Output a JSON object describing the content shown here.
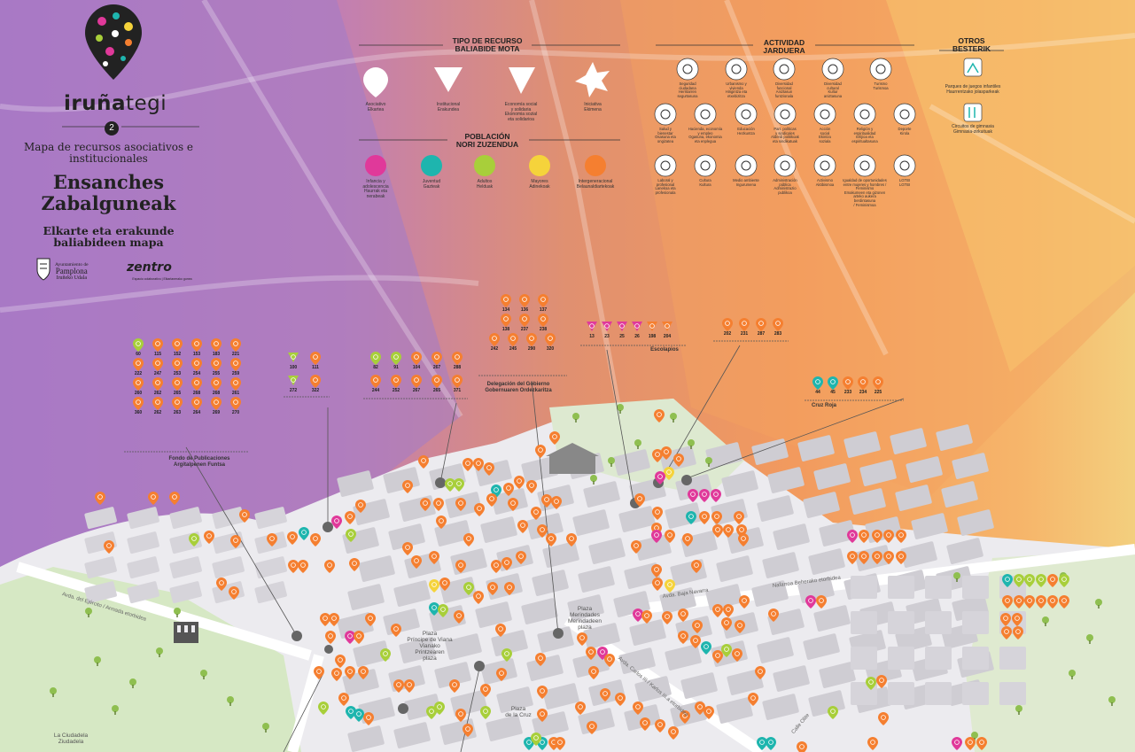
{
  "header": {
    "brand_bold": "iruña",
    "brand_light": "tegi",
    "edition": "2",
    "subtitle": "Mapa de recursos asociativos e institucionales",
    "district_es": "Ensanches",
    "district_eu": "Zabalguneak",
    "subtitle_eu": "Elkarte eta erakunde baliabideen mapa",
    "city_org_1": "Ayuntamiento de",
    "city_org_2": "Pamplona",
    "city_org_3": "Iruñeko Udala",
    "partner": "zentro",
    "partner_tag": "Espacio colaborativo | Elkarlanerako gunea"
  },
  "legend": {
    "tipo_title": "TIPO DE RECURSO\nBALIABIDE MOTA",
    "tipos": [
      {
        "label": "Asociativo\nElkartea",
        "shape": "drop"
      },
      {
        "label": "Institucional\nErakundea",
        "shape": "triangle"
      },
      {
        "label": "Economía social\ny solidaria\nEkonomia sozial\neta solidarioa",
        "shape": "diamond"
      },
      {
        "label": "Iniciativa\nEkimena",
        "shape": "star"
      }
    ],
    "poblacion_title": "POBLACIÓN\nNORI ZUZENDUA",
    "poblacion": [
      {
        "label": "Infancia y\nadolescencia\nHaurrak eta\nnerabeak",
        "color": "#e0399a"
      },
      {
        "label": "Juventud\nGazteak",
        "color": "#1eb5ae"
      },
      {
        "label": "Adultos\nHelduak",
        "color": "#a8cf3a"
      },
      {
        "label": "Mayores\nAdinekoak",
        "color": "#f5d33b"
      },
      {
        "label": "Intergeneracional\nBelaunaldiartekoak",
        "color": "#f57f30"
      }
    ],
    "actividad_title": "ACTIVIDAD\nJARDUERA",
    "actividades": [
      {
        "label": "Seguridad\nciudadana\nHerritarren\nsegurtasuna",
        "icon": "shield-check-icon"
      },
      {
        "label": "Urbanismo y\nvivienda\nHirigintza eta\netxebizitza",
        "icon": "house-icon"
      },
      {
        "label": "Diversidad\nfuncional\nAniztasun\nfuntzionala",
        "icon": "wheelchair-icon"
      },
      {
        "label": "Diversidad\ncultural\nKultur\naniztasuna",
        "icon": "globe-icon"
      },
      {
        "label": "Turismo\nTurismoa",
        "icon": "sun-icon"
      },
      {
        "label": "Salud y\nbienestar\nOsasuna eta\nongizatea",
        "icon": "heartbeat-icon"
      },
      {
        "label": "Hacienda, economía\ny empleo\nOgasuna, ekonomia\neta enplegua",
        "icon": "chart-icon"
      },
      {
        "label": "Educación\nHezkuntza",
        "icon": "book-icon"
      },
      {
        "label": "Part. políticas\ny sindicales\nAlderdi politikoak\neta sindikatuak",
        "icon": "megaphone-icon"
      },
      {
        "label": "Acción\nsocial\nEkintza\nsoziala",
        "icon": "handshake-icon"
      },
      {
        "label": "Religión y\nespiritualidad\nErlijioa eta\nespiritualtasuna",
        "icon": "eye-icon"
      },
      {
        "label": "Deporte\nKirola",
        "icon": "runner-icon"
      },
      {
        "label": "Laboral y\nprofesional\nLanekoa eta\nprofesionala",
        "icon": "gear-icon"
      },
      {
        "label": "Cultura\nKultura",
        "icon": "masks-icon"
      },
      {
        "label": "Medio ambiente\nIngurumena",
        "icon": "leaf-icon"
      },
      {
        "label": "Administración\npública\nAdministrazio\npublikoa",
        "icon": "building-icon"
      },
      {
        "label": "Activismo\nAktibismoa",
        "icon": "sign-icon"
      },
      {
        "label": "Igualdad de oportunidades\nentre mujeres y hombres / Feminismo\nEmakumeen eta gizonen\narteko aukera berdintasuna\n/ Feminismoa",
        "icon": "venus-icon"
      },
      {
        "label": "LGTBI\nLGTBI",
        "icon": "gender-icon"
      }
    ],
    "otros_title": "OTROS\nBESTERIK",
    "otros": [
      {
        "label": "Parques de juegos infantiles\nHaurrentzako jolasparkeak",
        "icon": "playground-icon"
      },
      {
        "label": "Circuitos de gimnasia\nGimnasia-zirkuituak",
        "icon": "exercise-icon"
      }
    ]
  },
  "groups": [
    {
      "label": "Fondo de Publicaciones\nArgitalpenen Funtsa",
      "rows": [
        [
          "60",
          "115",
          "152",
          "153",
          "183",
          "221"
        ],
        [
          "222",
          "247",
          "253",
          "254",
          "255",
          "259"
        ],
        [
          "260",
          "262",
          "265",
          "268",
          "268",
          "261"
        ],
        [
          "360",
          "262",
          "263",
          "264",
          "269",
          "270"
        ]
      ]
    },
    {
      "label": "",
      "rows": [
        [
          "100",
          "111"
        ],
        [
          "272",
          "322"
        ]
      ]
    },
    {
      "label": "",
      "rows": [
        [
          "82",
          "91",
          "104",
          "267",
          "288"
        ],
        [
          "244",
          "252",
          "267",
          "265",
          "371"
        ]
      ]
    },
    {
      "label": "Delegación del Gobierno\nGobernuaren Ordezkaritza",
      "rows": [
        [
          "134",
          "136",
          "137"
        ],
        [
          "138",
          "237",
          "238"
        ],
        [
          "242",
          "245",
          "290",
          "320"
        ]
      ]
    },
    {
      "label": "Escolapios",
      "rows": [
        [
          "13",
          "23",
          "25",
          "26",
          "198",
          "204"
        ]
      ]
    },
    {
      "label": "",
      "rows": [
        [
          "202",
          "231",
          "287",
          "283"
        ]
      ]
    },
    {
      "label": "Cruz Roja",
      "rows": [
        [
          "44",
          "45",
          "233",
          "234",
          "225"
        ]
      ]
    }
  ],
  "streets": [
    {
      "label": "Avda. del Ejército / Armada etorbidea"
    },
    {
      "label": "Avda. Baja Navarra"
    },
    {
      "label": "Nafarroa Beherako etorbidea"
    },
    {
      "label": "Avda. Carlos III / Karlos III.a etorbidea"
    },
    {
      "label": "Calle Olite"
    }
  ],
  "plazas": [
    {
      "label": "Plaza\nPríncipe de Viana\nVianako\nPrintzearen\nplaza"
    },
    {
      "label": "Plaza\nMerindades\nMerindadeen\nplaza"
    },
    {
      "label": "Plaza\nde la Cruz"
    },
    {
      "label": "La Ciudadela\nZiudadela"
    }
  ],
  "colors": {
    "infancia": "#e0399a",
    "juventud": "#1eb5ae",
    "adultos": "#a8cf3a",
    "mayores": "#f5d33b",
    "intergeneracional": "#f57f30"
  }
}
